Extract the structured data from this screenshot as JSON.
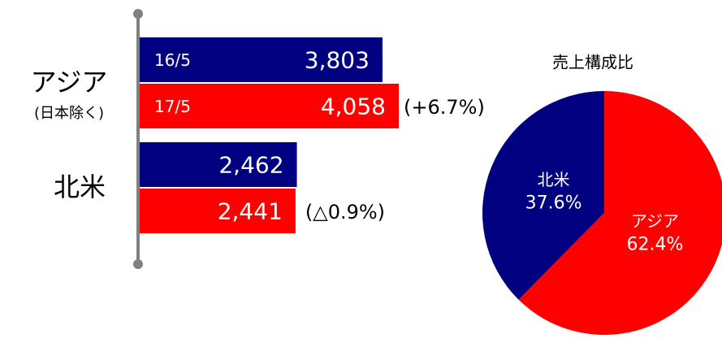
{
  "chart_data": [
    {
      "type": "hbar",
      "categories": [
        "アジア",
        "北米"
      ],
      "category_notes": [
        "(日本除く)",
        null
      ],
      "series": [
        {
          "name": "16/5",
          "color": "#000080",
          "values": [
            3803,
            2462
          ],
          "value_labels": [
            "3,803",
            "2,462"
          ]
        },
        {
          "name": "17/5",
          "color": "#ff0000",
          "values": [
            4058,
            2441
          ],
          "value_labels": [
            "4,058",
            "2,441"
          ]
        }
      ],
      "annotations": [
        "(+6.7%)",
        "(△0.9%)"
      ]
    },
    {
      "type": "pie",
      "title": "売上構成比",
      "categories": [
        "北米",
        "アジア"
      ],
      "values": [
        37.6,
        62.4
      ],
      "value_labels": [
        "37.6%",
        "62.4%"
      ],
      "colors": [
        "#000080",
        "#ff0000"
      ]
    }
  ]
}
